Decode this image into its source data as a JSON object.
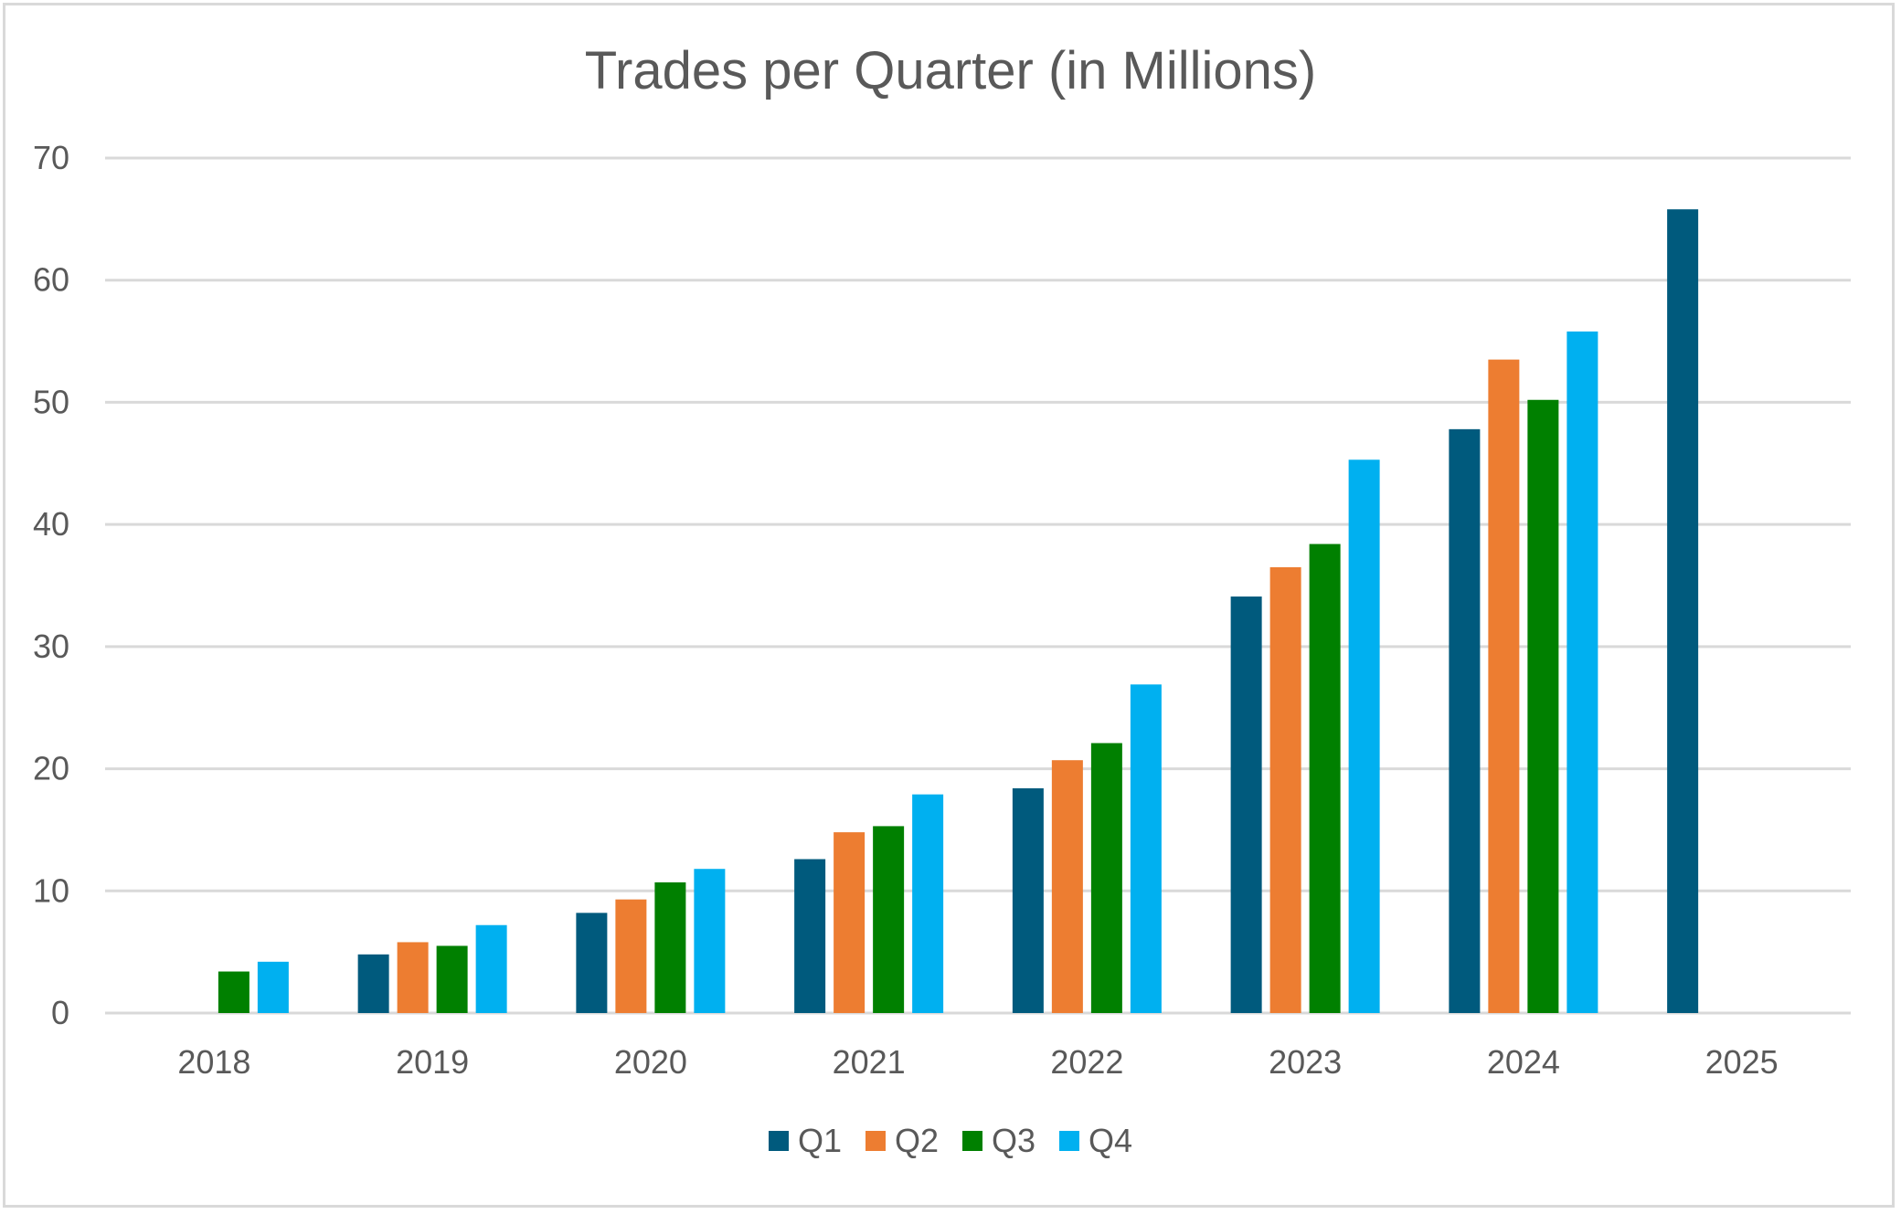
{
  "chart_data": {
    "type": "bar",
    "title": "Trades per Quarter (in Millions)",
    "xlabel": "",
    "ylabel": "",
    "categories": [
      "2018",
      "2019",
      "2020",
      "2021",
      "2022",
      "2023",
      "2024",
      "2025"
    ],
    "ylim": [
      0,
      70
    ],
    "yticks": [
      0,
      10,
      20,
      30,
      40,
      50,
      60,
      70
    ],
    "grid": true,
    "legend_position": "bottom",
    "series": [
      {
        "name": "Q1",
        "color": "#005a7d",
        "values": [
          null,
          4.8,
          8.2,
          12.6,
          18.4,
          34.1,
          47.8,
          65.8
        ]
      },
      {
        "name": "Q2",
        "color": "#ed7d31",
        "values": [
          null,
          5.8,
          9.3,
          14.8,
          20.7,
          36.5,
          53.5,
          null
        ]
      },
      {
        "name": "Q3",
        "color": "#008000",
        "values": [
          3.4,
          5.5,
          10.7,
          15.3,
          22.1,
          38.4,
          50.2,
          null
        ]
      },
      {
        "name": "Q4",
        "color": "#00b0f0",
        "values": [
          4.2,
          7.2,
          11.8,
          17.9,
          26.9,
          45.3,
          55.8,
          null
        ]
      }
    ]
  }
}
